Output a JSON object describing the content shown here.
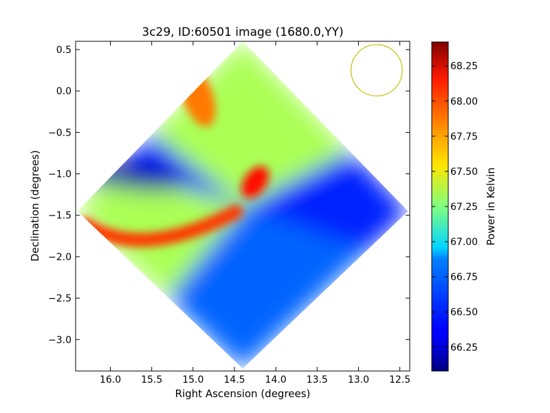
{
  "chart_data": {
    "type": "heatmap",
    "title": "3c29, ID:60501 image (1680.0,YY)",
    "xlabel": "Right Ascension (degrees)",
    "ylabel": "Declination (degrees)",
    "xlim": [
      16.42,
      12.38
    ],
    "ylim": [
      -3.38,
      0.6
    ],
    "x_ticks": [
      16.0,
      15.5,
      15.0,
      14.5,
      14.0,
      13.5,
      13.0,
      12.5
    ],
    "x_tick_labels": [
      "16.0",
      "15.5",
      "15.0",
      "14.5",
      "14.0",
      "13.5",
      "13.0",
      "12.5"
    ],
    "y_ticks": [
      0.5,
      0.0,
      -0.5,
      -1.0,
      -1.5,
      -2.0,
      -2.5,
      -3.0
    ],
    "y_tick_labels": [
      "0.5",
      "0.0",
      "−0.5",
      "−1.0",
      "−1.5",
      "−2.0",
      "−2.5",
      "−3.0"
    ],
    "colorbar": {
      "label": "Power in Kelvin",
      "range": [
        66.08,
        68.42
      ],
      "colormap": "jet",
      "ticks": [
        68.25,
        68.0,
        67.75,
        67.5,
        67.25,
        67.0,
        66.75,
        66.5,
        66.25
      ],
      "tick_labels": [
        "68.25",
        "68.00",
        "67.75",
        "67.50",
        "67.25",
        "67.00",
        "66.75",
        "66.50",
        "66.25"
      ]
    },
    "map_extent": {
      "center": [
        14.38,
        -1.39
      ],
      "top": [
        14.4,
        0.6
      ],
      "bottom": [
        14.4,
        -3.35
      ],
      "left": [
        16.4,
        -1.45
      ],
      "right": [
        12.4,
        -1.45
      ]
    },
    "regions": [
      {
        "name": "upper-lobe",
        "value": 67.35
      },
      {
        "name": "upper-left-hotspot",
        "value": 67.85
      },
      {
        "name": "left-lobe",
        "value": 67.35
      },
      {
        "name": "left-lower-arc",
        "value": 68.0
      },
      {
        "name": "right-lobe",
        "value": 66.45
      },
      {
        "name": "bottom-lobe",
        "value": 66.6
      },
      {
        "name": "upper-left-dark",
        "value": 66.15
      },
      {
        "name": "center-source",
        "value": 68.1
      }
    ],
    "beam_circle": {
      "center": [
        12.78,
        0.25
      ],
      "radius_deg": 0.31,
      "color": "#bfbf00"
    }
  }
}
